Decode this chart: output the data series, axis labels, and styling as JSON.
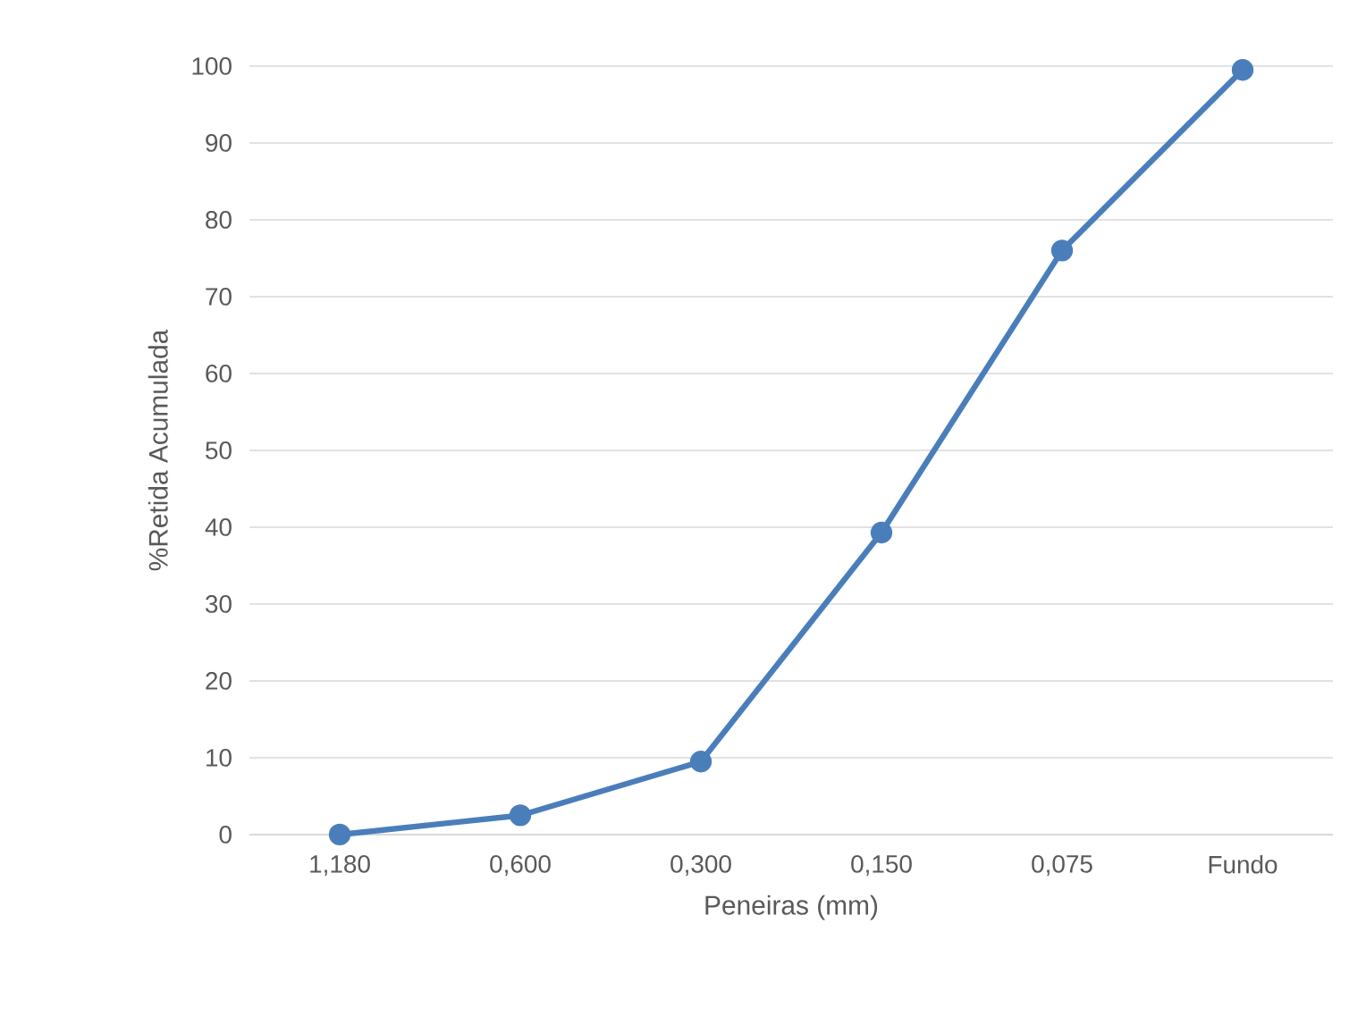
{
  "chart_data": {
    "type": "line",
    "xlabel": "Peneiras (mm)",
    "ylabel": "%Retida Acumulada",
    "categories": [
      "1,180",
      "0,600",
      "0,300",
      "0,150",
      "0,075",
      "Fundo"
    ],
    "series": [
      {
        "color": "#4a7ebb",
        "values": [
          0,
          2.5,
          9.5,
          39.3,
          76,
          99.5
        ]
      }
    ],
    "ylim": [
      0,
      100
    ],
    "yticks": [
      0,
      10,
      20,
      30,
      40,
      50,
      60,
      70,
      80,
      90,
      100
    ],
    "grid": "y",
    "marker": "circle",
    "line_style": "solid"
  }
}
